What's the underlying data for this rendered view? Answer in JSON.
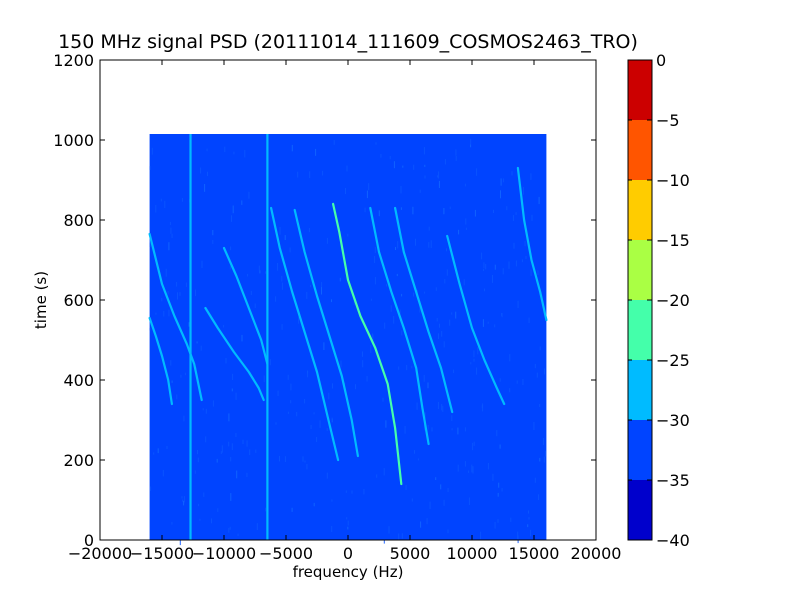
{
  "chart_data": {
    "type": "heatmap",
    "title": "150 MHz signal PSD (20111014_111609_COSMOS2463_TRO)",
    "xlabel": "frequency (Hz)",
    "ylabel": "time (s)",
    "xlim": [
      -20000,
      20000
    ],
    "ylim": [
      0,
      1200
    ],
    "xticks": [
      -20000,
      -15000,
      -10000,
      -5000,
      0,
      5000,
      10000,
      15000,
      20000
    ],
    "xtick_labels": [
      "−20000",
      "−15000",
      "−10000",
      "−5000",
      "0",
      "5000",
      "10000",
      "15000",
      "20000"
    ],
    "yticks": [
      0,
      200,
      400,
      600,
      800,
      1000,
      1200
    ],
    "ytick_labels": [
      "0",
      "200",
      "400",
      "600",
      "800",
      "1000",
      "1200"
    ],
    "data_extent": {
      "freq_range": [
        -16000,
        16000
      ],
      "time_range": [
        0,
        1015
      ]
    },
    "background_level": -33,
    "colorbar": {
      "boundaries": [
        -40,
        -35,
        -30,
        -25,
        -20,
        -15,
        -10,
        -5,
        0
      ],
      "tick_labels": [
        "0",
        "−5",
        "−10",
        "−15",
        "−20",
        "−25",
        "−30",
        "−35",
        "−40"
      ],
      "colors": [
        "#0000cc",
        "#0044ff",
        "#00bbff",
        "#44ffaa",
        "#aaff44",
        "#ffcc00",
        "#ff5500",
        "#cc0000"
      ]
    },
    "carrier_lines": [
      {
        "freq": -12700,
        "time_range": [
          0,
          1015
        ],
        "level": -27
      },
      {
        "freq": -6500,
        "time_range": [
          0,
          1015
        ],
        "level": -28
      }
    ],
    "traces": [
      {
        "points": [
          [
            -16000,
            765
          ],
          [
            -15000,
            640
          ],
          [
            -14000,
            560
          ],
          [
            -13000,
            490
          ],
          [
            -12400,
            440
          ],
          [
            -11800,
            350
          ]
        ],
        "level": -28
      },
      {
        "points": [
          [
            -16000,
            555
          ],
          [
            -15500,
            510
          ],
          [
            -15000,
            460
          ],
          [
            -14500,
            400
          ],
          [
            -14200,
            340
          ]
        ],
        "level": -27
      },
      {
        "points": [
          [
            -11500,
            580
          ],
          [
            -10500,
            530
          ],
          [
            -9200,
            470
          ],
          [
            -8000,
            420
          ],
          [
            -7200,
            380
          ],
          [
            -6800,
            350
          ]
        ],
        "level": -30
      },
      {
        "points": [
          [
            -10000,
            730
          ],
          [
            -9000,
            660
          ],
          [
            -8000,
            580
          ],
          [
            -7000,
            500
          ],
          [
            -6500,
            440
          ]
        ],
        "level": -30
      },
      {
        "points": [
          [
            -6200,
            830
          ],
          [
            -5500,
            730
          ],
          [
            -4500,
            620
          ],
          [
            -3500,
            520
          ],
          [
            -2500,
            420
          ],
          [
            -1500,
            290
          ],
          [
            -800,
            200
          ]
        ],
        "level": -27
      },
      {
        "points": [
          [
            -4300,
            825
          ],
          [
            -3500,
            720
          ],
          [
            -2500,
            610
          ],
          [
            -1500,
            510
          ],
          [
            -500,
            410
          ],
          [
            300,
            300
          ],
          [
            800,
            210
          ]
        ],
        "level": -27
      },
      {
        "points": [
          [
            -1200,
            840
          ],
          [
            -700,
            770
          ],
          [
            0,
            650
          ],
          [
            1000,
            560
          ],
          [
            2200,
            480
          ],
          [
            3200,
            390
          ],
          [
            3800,
            280
          ],
          [
            4300,
            140
          ]
        ],
        "level": -22
      },
      {
        "points": [
          [
            1800,
            830
          ],
          [
            2500,
            720
          ],
          [
            3500,
            620
          ],
          [
            4500,
            530
          ],
          [
            5500,
            430
          ],
          [
            6000,
            330
          ],
          [
            6500,
            240
          ]
        ],
        "level": -27
      },
      {
        "points": [
          [
            3800,
            830
          ],
          [
            4500,
            720
          ],
          [
            5500,
            620
          ],
          [
            6500,
            520
          ],
          [
            7500,
            430
          ],
          [
            8400,
            320
          ]
        ],
        "level": -26
      },
      {
        "points": [
          [
            8000,
            760
          ],
          [
            9000,
            640
          ],
          [
            10000,
            530
          ],
          [
            11000,
            450
          ],
          [
            12000,
            380
          ],
          [
            12600,
            340
          ]
        ],
        "level": -27
      },
      {
        "points": [
          [
            13700,
            930
          ],
          [
            14200,
            800
          ],
          [
            14800,
            700
          ],
          [
            15500,
            620
          ],
          [
            16000,
            550
          ]
        ],
        "level": -27
      }
    ],
    "grid": false
  }
}
